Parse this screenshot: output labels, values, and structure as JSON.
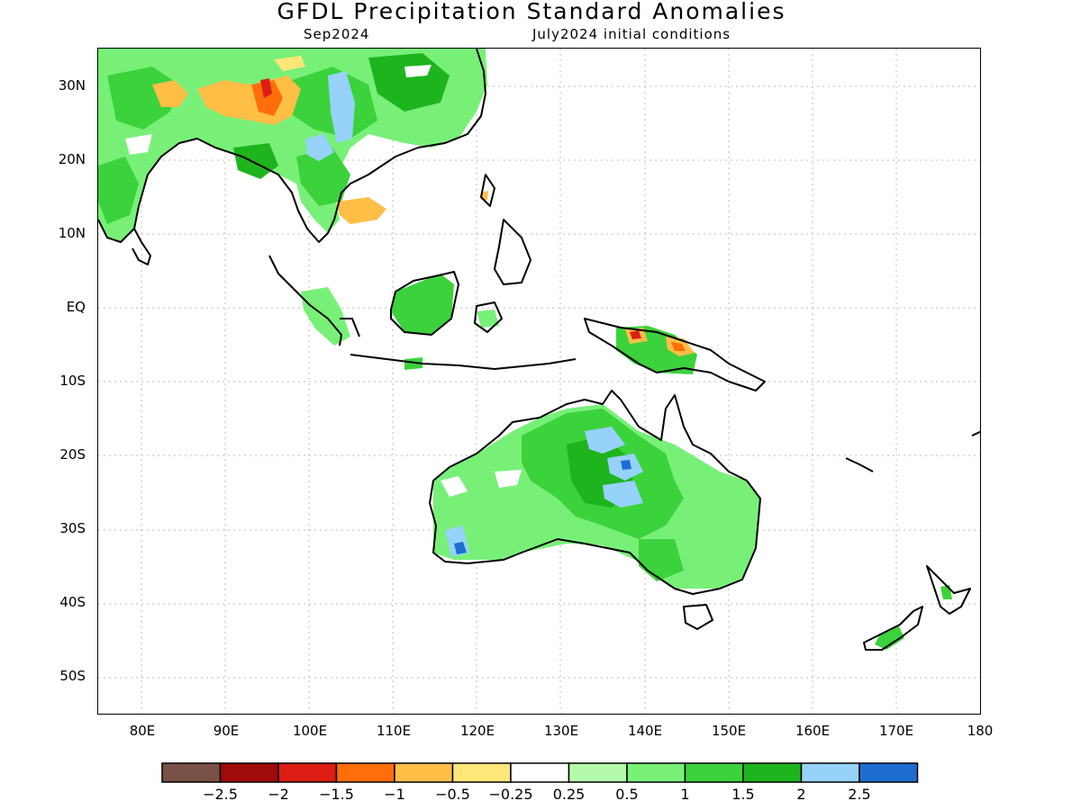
{
  "title": "GFDL Precipitation Standard Anomalies",
  "valid_month": "Sep2024",
  "initial_conditions": "July2024 initial conditions",
  "lat_labels": [
    "30N",
    "20N",
    "10N",
    "EQ",
    "10S",
    "20S",
    "30S",
    "40S",
    "50S"
  ],
  "lon_labels": [
    "80E",
    "90E",
    "100E",
    "110E",
    "120E",
    "130E",
    "140E",
    "150E",
    "160E",
    "170E",
    "180"
  ],
  "colorbar": {
    "colors": [
      "#7a5146",
      "#a00a0a",
      "#dc1e14",
      "#ff6e0a",
      "#ffbe46",
      "#ffe678",
      "#ffffff",
      "#b4faaa",
      "#78f078",
      "#3cd23c",
      "#1eb41e",
      "#96d2fa",
      "#1e6ed2"
    ],
    "labels": [
      "-2.5",
      "-2",
      "-1.5",
      "-1",
      "-0.5",
      "-0.25",
      "0.25",
      "0.5",
      "1",
      "1.5",
      "2",
      "2.5"
    ]
  }
}
